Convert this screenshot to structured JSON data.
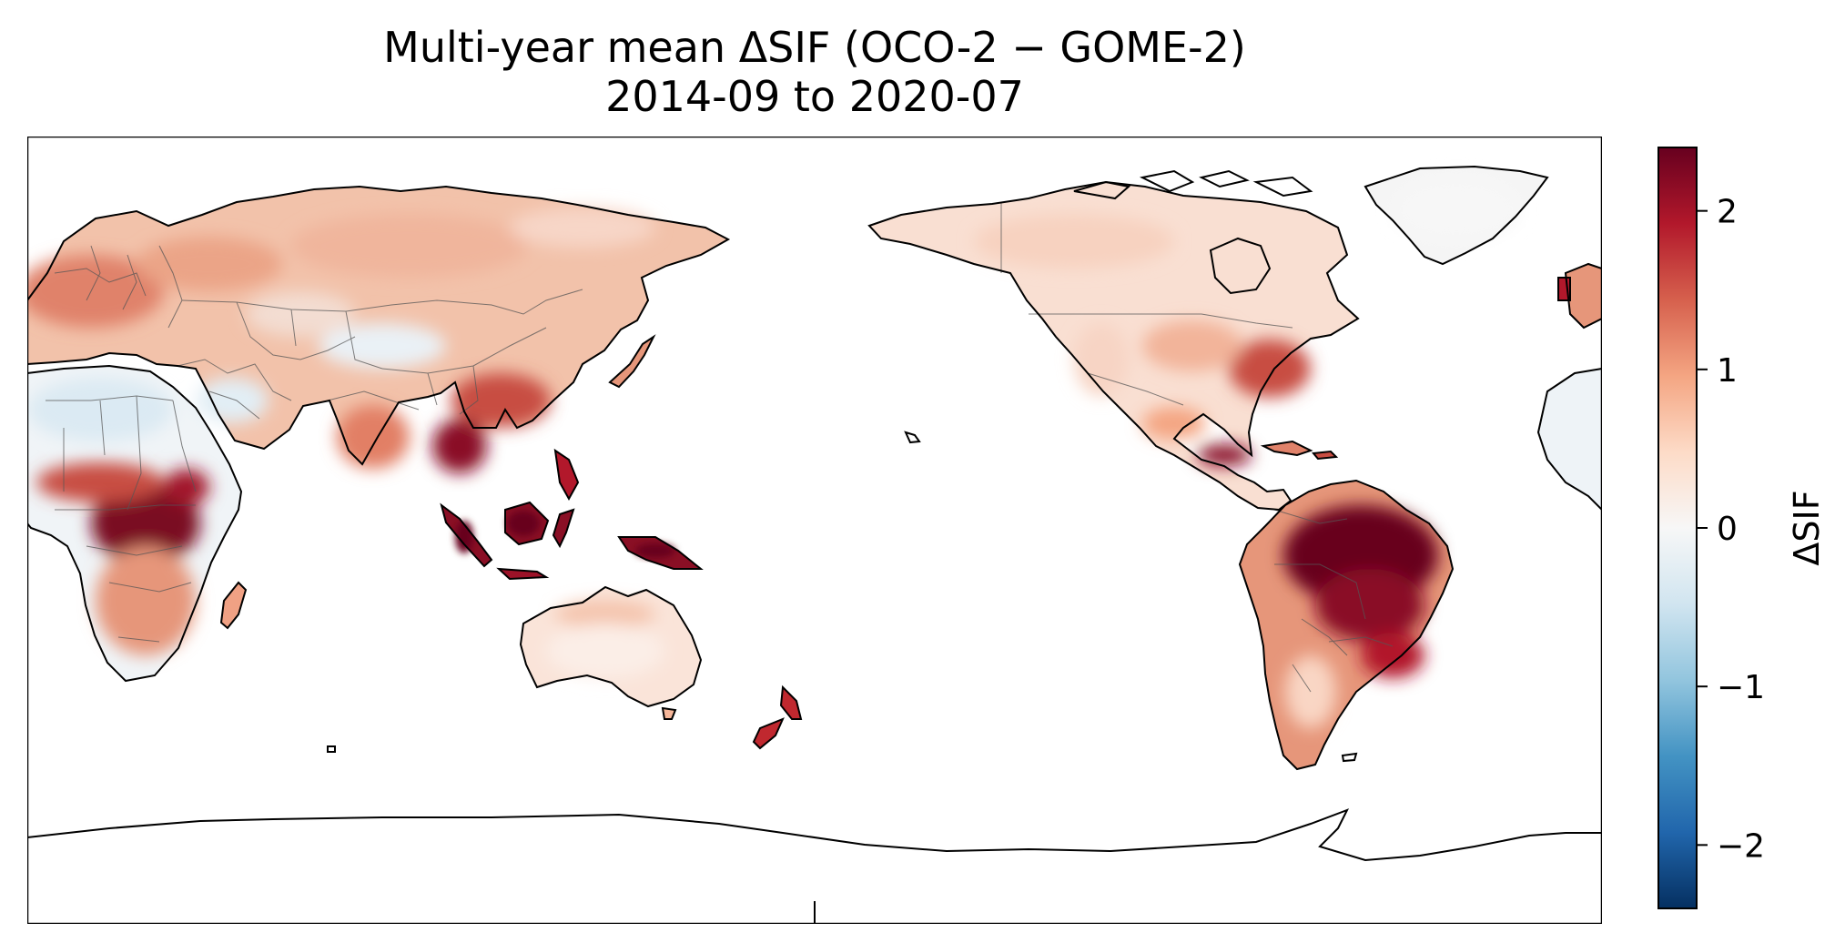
{
  "chart_data": {
    "type": "heatmap",
    "subtype": "geographic map (PlateCarree, central longitude 180)",
    "title": "Multi-year mean ΔSIF (OCO-2 − GOME-2)",
    "subtitle": "2014-09 to 2020-07",
    "colormap": "RdBu_r (diverging)",
    "colorbar": {
      "label": "ΔSIF",
      "range": [
        -2.4,
        2.4
      ],
      "ticks": [
        -2,
        -1,
        0,
        1,
        2
      ],
      "tick_labels": [
        "−2",
        "−1",
        "0",
        "1",
        "2"
      ],
      "orientation": "vertical",
      "placement": "right"
    },
    "colors": {
      "low_end": "#053061",
      "mid": "#f7f7f7",
      "high_end": "#67001f"
    },
    "regional_values": [
      {
        "region": "Amazon basin",
        "approx_delta_sif": 2.4
      },
      {
        "region": "Central Africa (Congo)",
        "approx_delta_sif": 2.1
      },
      {
        "region": "Indonesia / New Guinea",
        "approx_delta_sif": 2.0
      },
      {
        "region": "Southeast Asia / Southern China",
        "approx_delta_sif": 1.8
      },
      {
        "region": "Central America",
        "approx_delta_sif": 2.0
      },
      {
        "region": "South-eastern Brazil",
        "approx_delta_sif": 1.6
      },
      {
        "region": "Eastern United States",
        "approx_delta_sif": 1.0
      },
      {
        "region": "Europe",
        "approx_delta_sif": 1.0
      },
      {
        "region": "Siberia / Boreal Eurasia",
        "approx_delta_sif": 0.6
      },
      {
        "region": "Canada",
        "approx_delta_sif": 0.3
      },
      {
        "region": "Australia",
        "approx_delta_sif": 0.2
      },
      {
        "region": "New Zealand",
        "approx_delta_sif": 1.8
      },
      {
        "region": "Sahara / Arabia",
        "approx_delta_sif": -0.3
      },
      {
        "region": "Tibetan Plateau",
        "approx_delta_sif": -0.1
      },
      {
        "region": "Greenland",
        "approx_delta_sif": 0.1
      }
    ],
    "coastlines": true,
    "country_borders": true
  }
}
